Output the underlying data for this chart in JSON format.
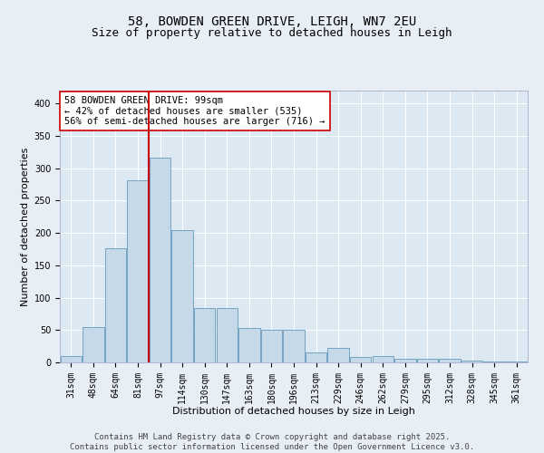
{
  "title1": "58, BOWDEN GREEN DRIVE, LEIGH, WN7 2EU",
  "title2": "Size of property relative to detached houses in Leigh",
  "xlabel": "Distribution of detached houses by size in Leigh",
  "ylabel": "Number of detached properties",
  "categories": [
    "31sqm",
    "48sqm",
    "64sqm",
    "81sqm",
    "97sqm",
    "114sqm",
    "130sqm",
    "147sqm",
    "163sqm",
    "180sqm",
    "196sqm",
    "213sqm",
    "229sqm",
    "246sqm",
    "262sqm",
    "279sqm",
    "295sqm",
    "312sqm",
    "328sqm",
    "345sqm",
    "361sqm"
  ],
  "values": [
    10,
    54,
    176,
    281,
    317,
    204,
    84,
    84,
    53,
    51,
    50,
    15,
    23,
    8,
    10,
    5,
    6,
    5,
    3,
    2,
    2
  ],
  "bar_color": "#c5d9e8",
  "bar_edge_color": "#6699bb",
  "vline_color": "#cc0000",
  "vline_index": 4,
  "annotation_text": "58 BOWDEN GREEN DRIVE: 99sqm\n← 42% of detached houses are smaller (535)\n56% of semi-detached houses are larger (716) →",
  "annotation_box_facecolor": "#ffffff",
  "annotation_box_edgecolor": "#cc0000",
  "ylim": [
    0,
    420
  ],
  "yticks": [
    0,
    50,
    100,
    150,
    200,
    250,
    300,
    350,
    400
  ],
  "footer_line1": "Contains HM Land Registry data © Crown copyright and database right 2025.",
  "footer_line2": "Contains public sector information licensed under the Open Government Licence v3.0.",
  "fig_facecolor": "#e8eef5",
  "plot_facecolor": "#dce8f2",
  "grid_color": "#ffffff",
  "title_fontsize": 10,
  "subtitle_fontsize": 9,
  "axis_label_fontsize": 8,
  "tick_fontsize": 7,
  "annotation_fontsize": 7.5,
  "footer_fontsize": 6.5
}
